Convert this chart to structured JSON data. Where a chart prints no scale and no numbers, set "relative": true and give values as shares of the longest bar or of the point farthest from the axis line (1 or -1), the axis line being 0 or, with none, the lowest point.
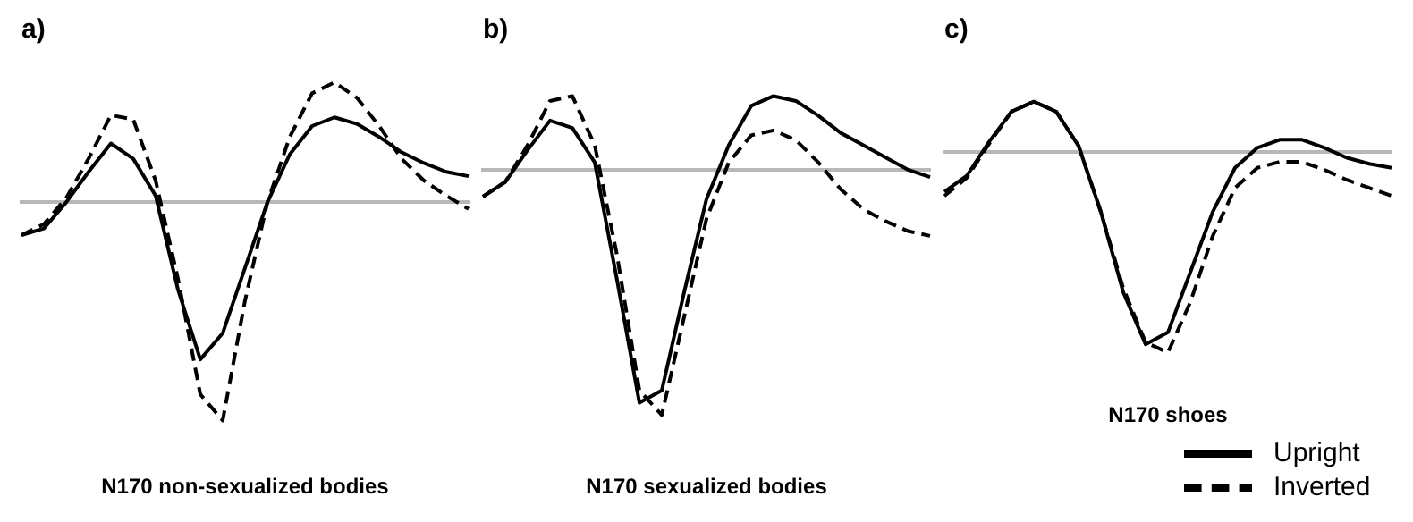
{
  "chart_data": [
    {
      "type": "line",
      "title": "a)",
      "xlabel": "N170 non-sexualized bodies",
      "relative": true,
      "marker": "none",
      "categories": [
        null,
        null,
        null,
        null,
        null,
        null,
        null,
        null,
        null,
        null,
        null,
        null,
        null,
        null,
        null,
        null,
        null,
        null,
        null,
        null,
        null
      ],
      "series": [
        {
          "color": "#000000",
          "line_style": "solid",
          "values": [
            -0.15,
            -0.12,
            0.0,
            0.14,
            0.27,
            0.2,
            0.03,
            -0.4,
            -0.72,
            -0.6,
            -0.3,
            0.0,
            0.22,
            0.35,
            0.39,
            0.36,
            0.3,
            0.23,
            0.18,
            0.14,
            0.12
          ]
        },
        {
          "color": "#000000",
          "line_style": "dashed",
          "values": [
            -0.15,
            -0.1,
            0.02,
            0.2,
            0.4,
            0.38,
            0.1,
            -0.35,
            -0.88,
            -1,
            -0.45,
            0.0,
            0.3,
            0.5,
            0.55,
            0.48,
            0.35,
            0.2,
            0.1,
            0.03,
            -0.03
          ]
        }
      ]
    },
    {
      "type": "line",
      "title": "b)",
      "xlabel": "N170 sexualized bodies",
      "relative": true,
      "marker": "none",
      "categories": [
        null,
        null,
        null,
        null,
        null,
        null,
        null,
        null,
        null,
        null,
        null,
        null,
        null,
        null,
        null,
        null,
        null,
        null,
        null,
        null,
        null
      ],
      "series": [
        {
          "color": "#000000",
          "line_style": "solid",
          "values": [
            -0.11,
            -0.05,
            0.08,
            0.2,
            0.17,
            0.03,
            -0.45,
            -0.95,
            -0.9,
            -0.5,
            -0.12,
            0.1,
            0.26,
            0.3,
            0.28,
            0.22,
            0.15,
            0.1,
            0.05,
            0.0,
            -0.03
          ]
        },
        {
          "color": "#000000",
          "line_style": "dashed",
          "values": [
            -0.11,
            -0.05,
            0.1,
            0.28,
            0.3,
            0.1,
            -0.35,
            -0.9,
            -1,
            -0.6,
            -0.2,
            0.03,
            0.14,
            0.16,
            0.12,
            0.03,
            -0.08,
            -0.16,
            -0.21,
            -0.25,
            -0.27
          ]
        }
      ]
    },
    {
      "type": "line",
      "title": "c)",
      "xlabel": "N170 shoes",
      "relative": true,
      "marker": "none",
      "legend": "bottom right",
      "categories": [
        null,
        null,
        null,
        null,
        null,
        null,
        null,
        null,
        null,
        null,
        null,
        null,
        null,
        null,
        null,
        null,
        null,
        null,
        null,
        null,
        null
      ],
      "series": [
        {
          "name": "Upright",
          "color": "#000000",
          "line_style": "solid",
          "values": [
            -0.2,
            -0.12,
            0.05,
            0.2,
            0.25,
            0.2,
            0.03,
            -0.3,
            -0.7,
            -0.96,
            -0.9,
            -0.6,
            -0.3,
            -0.08,
            0.02,
            0.06,
            0.06,
            0.02,
            -0.03,
            -0.06,
            -0.08
          ]
        },
        {
          "name": "Inverted",
          "color": "#000000",
          "line_style": "dashed",
          "values": [
            -0.22,
            -0.13,
            0.04,
            0.2,
            0.25,
            0.2,
            0.03,
            -0.3,
            -0.68,
            -0.95,
            -1,
            -0.75,
            -0.42,
            -0.18,
            -0.08,
            -0.05,
            -0.05,
            -0.09,
            -0.14,
            -0.18,
            -0.22
          ]
        }
      ]
    }
  ]
}
